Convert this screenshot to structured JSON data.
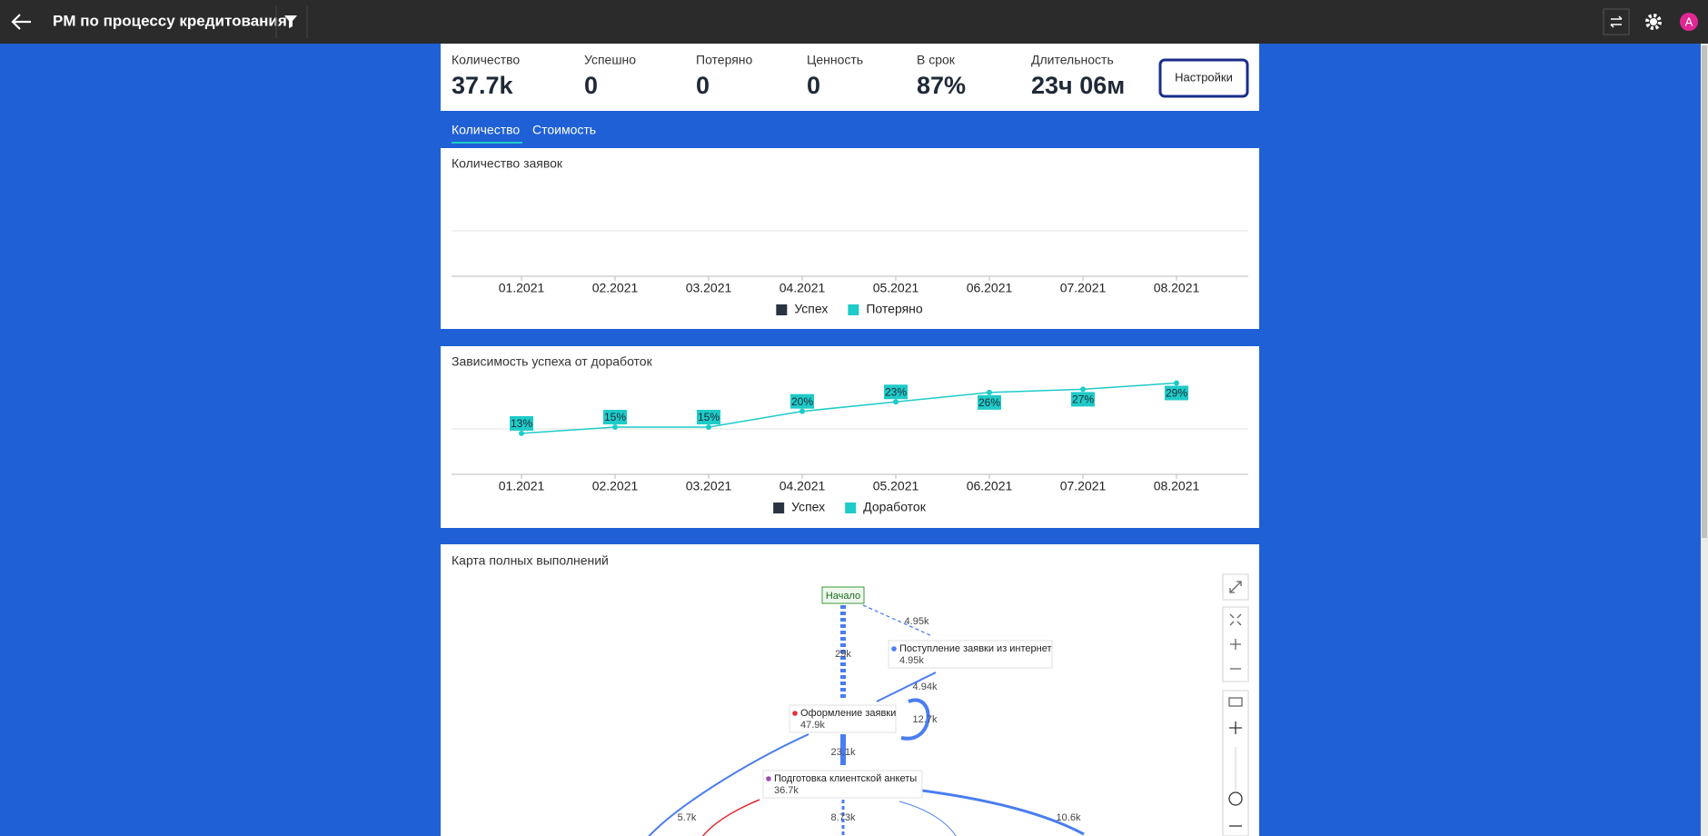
{
  "header": {
    "title": "PM по процессу кредитования",
    "user_initial": "A"
  },
  "kpis": [
    {
      "label": "Количество",
      "value": "37.7k"
    },
    {
      "label": "Успешно",
      "value": "0"
    },
    {
      "label": "Потеряно",
      "value": "0"
    },
    {
      "label": "Ценность",
      "value": "0"
    },
    {
      "label": "В срок",
      "value": "87%"
    },
    {
      "label": "Длительность",
      "value": "23ч 06м"
    }
  ],
  "settings_button": "Настройки",
  "tabs": [
    "Количество",
    "Стоимость"
  ],
  "chart_data": [
    {
      "type": "line",
      "title": "Количество заявок",
      "categories": [
        "01.2021",
        "02.2021",
        "03.2021",
        "04.2021",
        "05.2021",
        "06.2021",
        "07.2021",
        "08.2021"
      ],
      "series": [
        {
          "name": "Успех",
          "color": "#2a3342"
        },
        {
          "name": "Потеряно",
          "color": "#1ecbc8"
        }
      ]
    },
    {
      "type": "line",
      "title": "Зависимость успеха от доработок",
      "categories": [
        "01.2021",
        "02.2021",
        "03.2021",
        "04.2021",
        "05.2021",
        "06.2021",
        "07.2021",
        "08.2021"
      ],
      "ylim": [
        0,
        30
      ],
      "series": [
        {
          "name": "Успех",
          "color": "#2a3342"
        },
        {
          "name": "Доработок",
          "color": "#1ecbc8",
          "values": [
            13,
            15,
            15,
            20,
            23,
            26,
            27,
            29
          ],
          "value_labels": [
            "13%",
            "15%",
            "15%",
            "20%",
            "23%",
            "26%",
            "27%",
            "29%"
          ]
        }
      ]
    }
  ],
  "process_map": {
    "title": "Карта полных выполнений",
    "nodes": [
      {
        "label": "Начало"
      },
      {
        "label": "Поступление заявки из интернет",
        "value": "4.95k"
      },
      {
        "label": "Оформление заявки",
        "value": "47.9k"
      },
      {
        "label": "Подготовка клиентской анкеты",
        "value": "36.7k"
      }
    ],
    "edge_labels": [
      "4.95k",
      "29k",
      "4.94k",
      "12.7k",
      "23.1k",
      "5.7k",
      "8.73k",
      "10.6k"
    ]
  }
}
